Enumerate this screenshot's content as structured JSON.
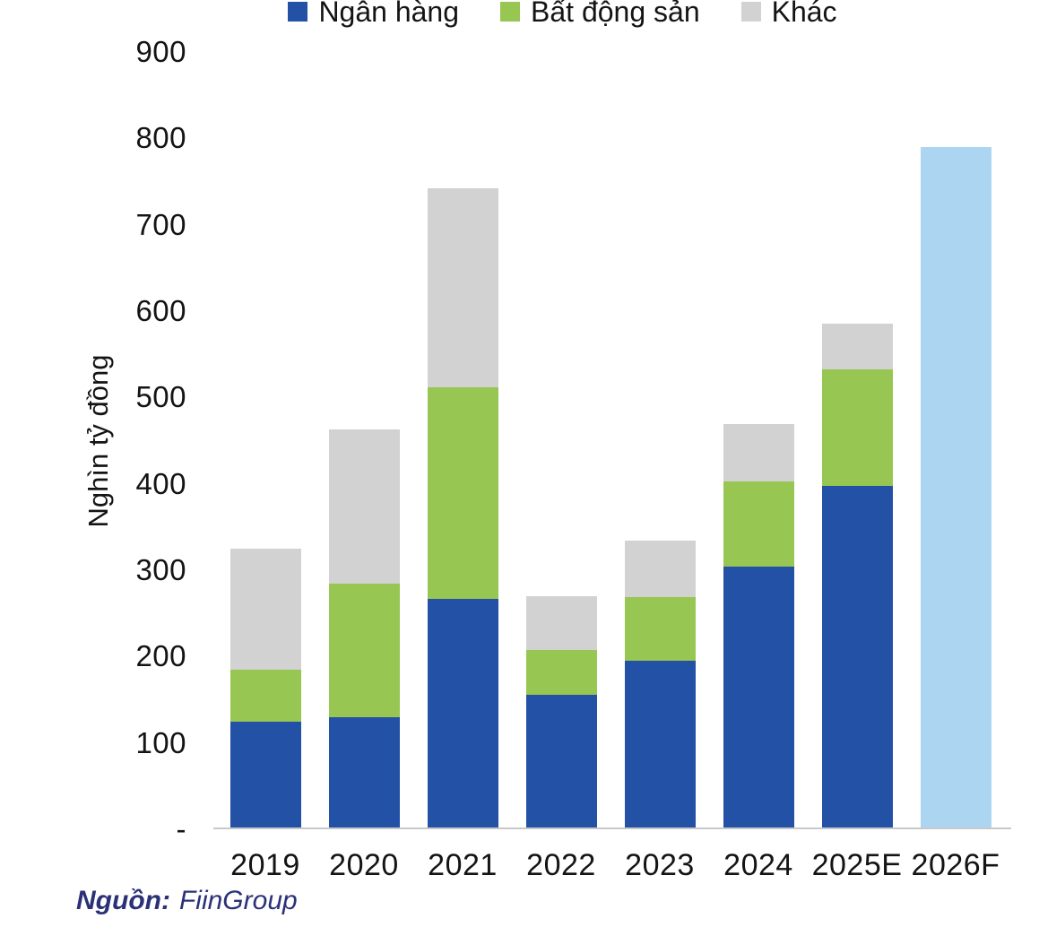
{
  "page": {
    "background": "#ffffff"
  },
  "colors": {
    "bank_blue": "#2351A5",
    "real_estate_green": "#97C653",
    "other_gray": "#D2D2D2",
    "forecast_light_blue": "#ABD5F0",
    "axis_line": "#C9C9C9",
    "source_text": "#2A3178",
    "text": "#141414"
  },
  "chart_data": {
    "type": "bar",
    "stacked": true,
    "title": "",
    "ylabel": "Nghìn tỷ đồng",
    "categories": [
      "2019",
      "2020",
      "2021",
      "2022",
      "2023",
      "2024",
      "2025E",
      "2026F"
    ],
    "series": [
      {
        "name": "Ngân hàng",
        "color": "#2351A5",
        "values": [
          125,
          130,
          267,
          156,
          195,
          304,
          398,
          0
        ]
      },
      {
        "name": "Bất động sản",
        "color": "#97C653",
        "values": [
          60,
          155,
          245,
          52,
          74,
          99,
          135,
          0
        ]
      },
      {
        "name": "Khác",
        "color": "#D2D2D2",
        "values": [
          140,
          178,
          230,
          62,
          65,
          66,
          53,
          0
        ]
      }
    ],
    "forecast_bar": {
      "category": "2026F",
      "value": 790,
      "color": "#ABD5F0"
    },
    "totals": [
      325,
      463,
      742,
      270,
      334,
      469,
      586,
      790
    ],
    "ylim": [
      0,
      900
    ],
    "yticks": [
      900,
      800,
      700,
      600,
      500,
      400,
      300,
      200,
      100,
      0
    ],
    "ytick_labels": [
      "900",
      "800",
      "700",
      "600",
      "500",
      "400",
      "300",
      "200",
      "100",
      "-"
    ],
    "legend_position": "top",
    "grid": false
  },
  "source": {
    "label": "Nguồn:",
    "value": "FiinGroup"
  }
}
